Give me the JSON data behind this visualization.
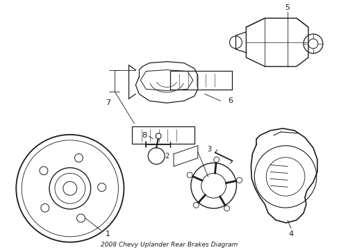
{
  "title": "2008 Chevy Uplander Rear Brakes Diagram",
  "background_color": "#ffffff",
  "line_color": "#1a1a1a",
  "fig_width": 4.89,
  "fig_height": 3.6,
  "dpi": 100
}
